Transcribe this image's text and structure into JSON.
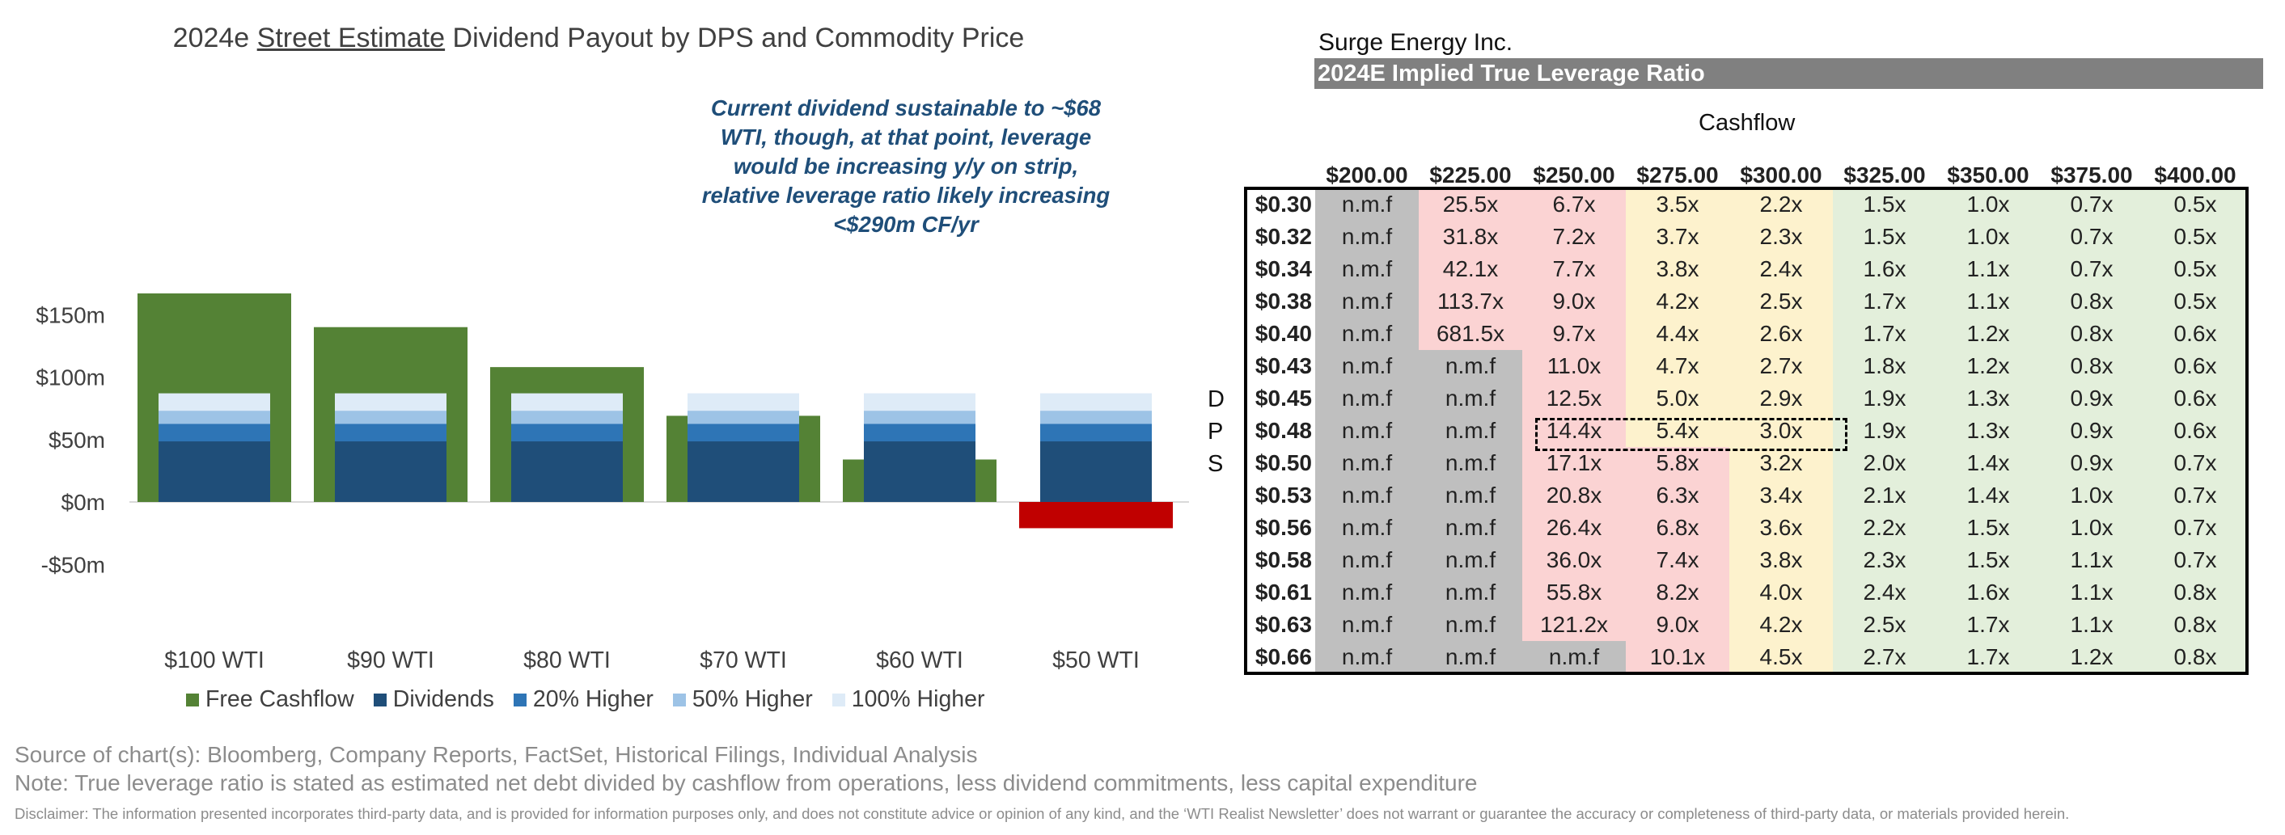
{
  "chart": {
    "title_before": "2024e ",
    "title_underlined": "Street Estimate",
    "title_after": " Dividend Payout by DPS and Commodity Price",
    "annotation": "Current dividend sustainable to ~$68 WTI, though, at that point, leverage would be increasing y/y on strip, relative leverage ratio likely increasing <$290m CF/yr"
  },
  "chart_data": {
    "type": "bar",
    "title": "2024e Street Estimate Dividend Payout by DPS and Commodity Price",
    "categories": [
      "$100 WTI",
      "$90 WTI",
      "$80 WTI",
      "$70 WTI",
      "$60 WTI",
      "$50 WTI"
    ],
    "y_ticks": [
      150,
      100,
      50,
      0,
      -50
    ],
    "y_tick_labels": [
      "$150m",
      "$100m",
      "$50m",
      "$0m",
      "-$50m"
    ],
    "ylim": [
      -50,
      175
    ],
    "unit": "$m",
    "series": [
      {
        "name": "Free Cashflow",
        "color": "#548235",
        "values": [
          167,
          140,
          108,
          69,
          34,
          -21
        ]
      },
      {
        "name": "Dividends",
        "color": "#1f4e79",
        "values": [
          48.5,
          48.5,
          48.5,
          48.5,
          48.5,
          48.5
        ]
      },
      {
        "name": "20% Higher",
        "color": "#2e75b6",
        "values": [
          62.5,
          62.5,
          62.5,
          62.5,
          62.5,
          62.5
        ]
      },
      {
        "name": "50% Higher",
        "color": "#9dc3e6",
        "values": [
          73,
          73,
          73,
          73,
          73,
          73
        ]
      },
      {
        "name": "100% Higher",
        "color": "#deebf7",
        "values": [
          87,
          87,
          87,
          87,
          87,
          87
        ]
      }
    ],
    "negative_color": "#c00000",
    "legend_position": "bottom",
    "grid": false
  },
  "right": {
    "company": "Surge Energy Inc.",
    "title": "2024E Implied True Leverage Ratio",
    "cashflow_label": "Cashflow",
    "dps_letters": [
      "D",
      "P",
      "S"
    ]
  },
  "leverage_table": {
    "columns": [
      "$200.00",
      "$225.00",
      "$250.00",
      "$275.00",
      "$300.00",
      "$325.00",
      "$350.00",
      "$375.00",
      "$400.00"
    ],
    "rows": [
      {
        "dps": "$0.30",
        "values": [
          "n.m.f",
          "25.5x",
          "6.7x",
          "3.5x",
          "2.2x",
          "1.5x",
          "1.0x",
          "0.7x",
          "0.5x"
        ]
      },
      {
        "dps": "$0.32",
        "values": [
          "n.m.f",
          "31.8x",
          "7.2x",
          "3.7x",
          "2.3x",
          "1.5x",
          "1.0x",
          "0.7x",
          "0.5x"
        ]
      },
      {
        "dps": "$0.34",
        "values": [
          "n.m.f",
          "42.1x",
          "7.7x",
          "3.8x",
          "2.4x",
          "1.6x",
          "1.1x",
          "0.7x",
          "0.5x"
        ]
      },
      {
        "dps": "$0.38",
        "values": [
          "n.m.f",
          "113.7x",
          "9.0x",
          "4.2x",
          "2.5x",
          "1.7x",
          "1.1x",
          "0.8x",
          "0.5x"
        ]
      },
      {
        "dps": "$0.40",
        "values": [
          "n.m.f",
          "681.5x",
          "9.7x",
          "4.4x",
          "2.6x",
          "1.7x",
          "1.2x",
          "0.8x",
          "0.6x"
        ]
      },
      {
        "dps": "$0.43",
        "values": [
          "n.m.f",
          "n.m.f",
          "11.0x",
          "4.7x",
          "2.7x",
          "1.8x",
          "1.2x",
          "0.8x",
          "0.6x"
        ]
      },
      {
        "dps": "$0.45",
        "values": [
          "n.m.f",
          "n.m.f",
          "12.5x",
          "5.0x",
          "2.9x",
          "1.9x",
          "1.3x",
          "0.9x",
          "0.6x"
        ]
      },
      {
        "dps": "$0.48",
        "values": [
          "n.m.f",
          "n.m.f",
          "14.4x",
          "5.4x",
          "3.0x",
          "1.9x",
          "1.3x",
          "0.9x",
          "0.6x"
        ]
      },
      {
        "dps": "$0.50",
        "values": [
          "n.m.f",
          "n.m.f",
          "17.1x",
          "5.8x",
          "3.2x",
          "2.0x",
          "1.4x",
          "0.9x",
          "0.7x"
        ]
      },
      {
        "dps": "$0.53",
        "values": [
          "n.m.f",
          "n.m.f",
          "20.8x",
          "6.3x",
          "3.4x",
          "2.1x",
          "1.4x",
          "1.0x",
          "0.7x"
        ]
      },
      {
        "dps": "$0.56",
        "values": [
          "n.m.f",
          "n.m.f",
          "26.4x",
          "6.8x",
          "3.6x",
          "2.2x",
          "1.5x",
          "1.0x",
          "0.7x"
        ]
      },
      {
        "dps": "$0.58",
        "values": [
          "n.m.f",
          "n.m.f",
          "36.0x",
          "7.4x",
          "3.8x",
          "2.3x",
          "1.5x",
          "1.1x",
          "0.7x"
        ]
      },
      {
        "dps": "$0.61",
        "values": [
          "n.m.f",
          "n.m.f",
          "55.8x",
          "8.2x",
          "4.0x",
          "2.4x",
          "1.6x",
          "1.1x",
          "0.8x"
        ]
      },
      {
        "dps": "$0.63",
        "values": [
          "n.m.f",
          "n.m.f",
          "121.2x",
          "9.0x",
          "4.2x",
          "2.5x",
          "1.7x",
          "1.1x",
          "0.8x"
        ]
      },
      {
        "dps": "$0.66",
        "values": [
          "n.m.f",
          "n.m.f",
          "n.m.f",
          "10.1x",
          "4.5x",
          "2.7x",
          "1.7x",
          "1.2x",
          "0.8x"
        ]
      }
    ],
    "colors": {
      "grey": "#bfbfbf",
      "red": "#fbd3d3",
      "yellow": "#fdf2cd",
      "green": "#e3efdb"
    }
  },
  "footer": {
    "source": "Source of chart(s): Bloomberg, Company Reports, FactSet, Historical Filings, Individual Analysis",
    "note": "Note: True leverage ratio is stated as estimated net debt divided by cashflow from operations, less dividend commitments, less capital expenditure",
    "disclaimer": "Disclaimer: The information presented incorporates third-party data, and is provided for information purposes only, and does not constitute advice or opinion of any kind, and the ‘WTI Realist Newsletter’ does not warrant or guarantee the accuracy or completeness of third-party data, or materials provided herein."
  }
}
